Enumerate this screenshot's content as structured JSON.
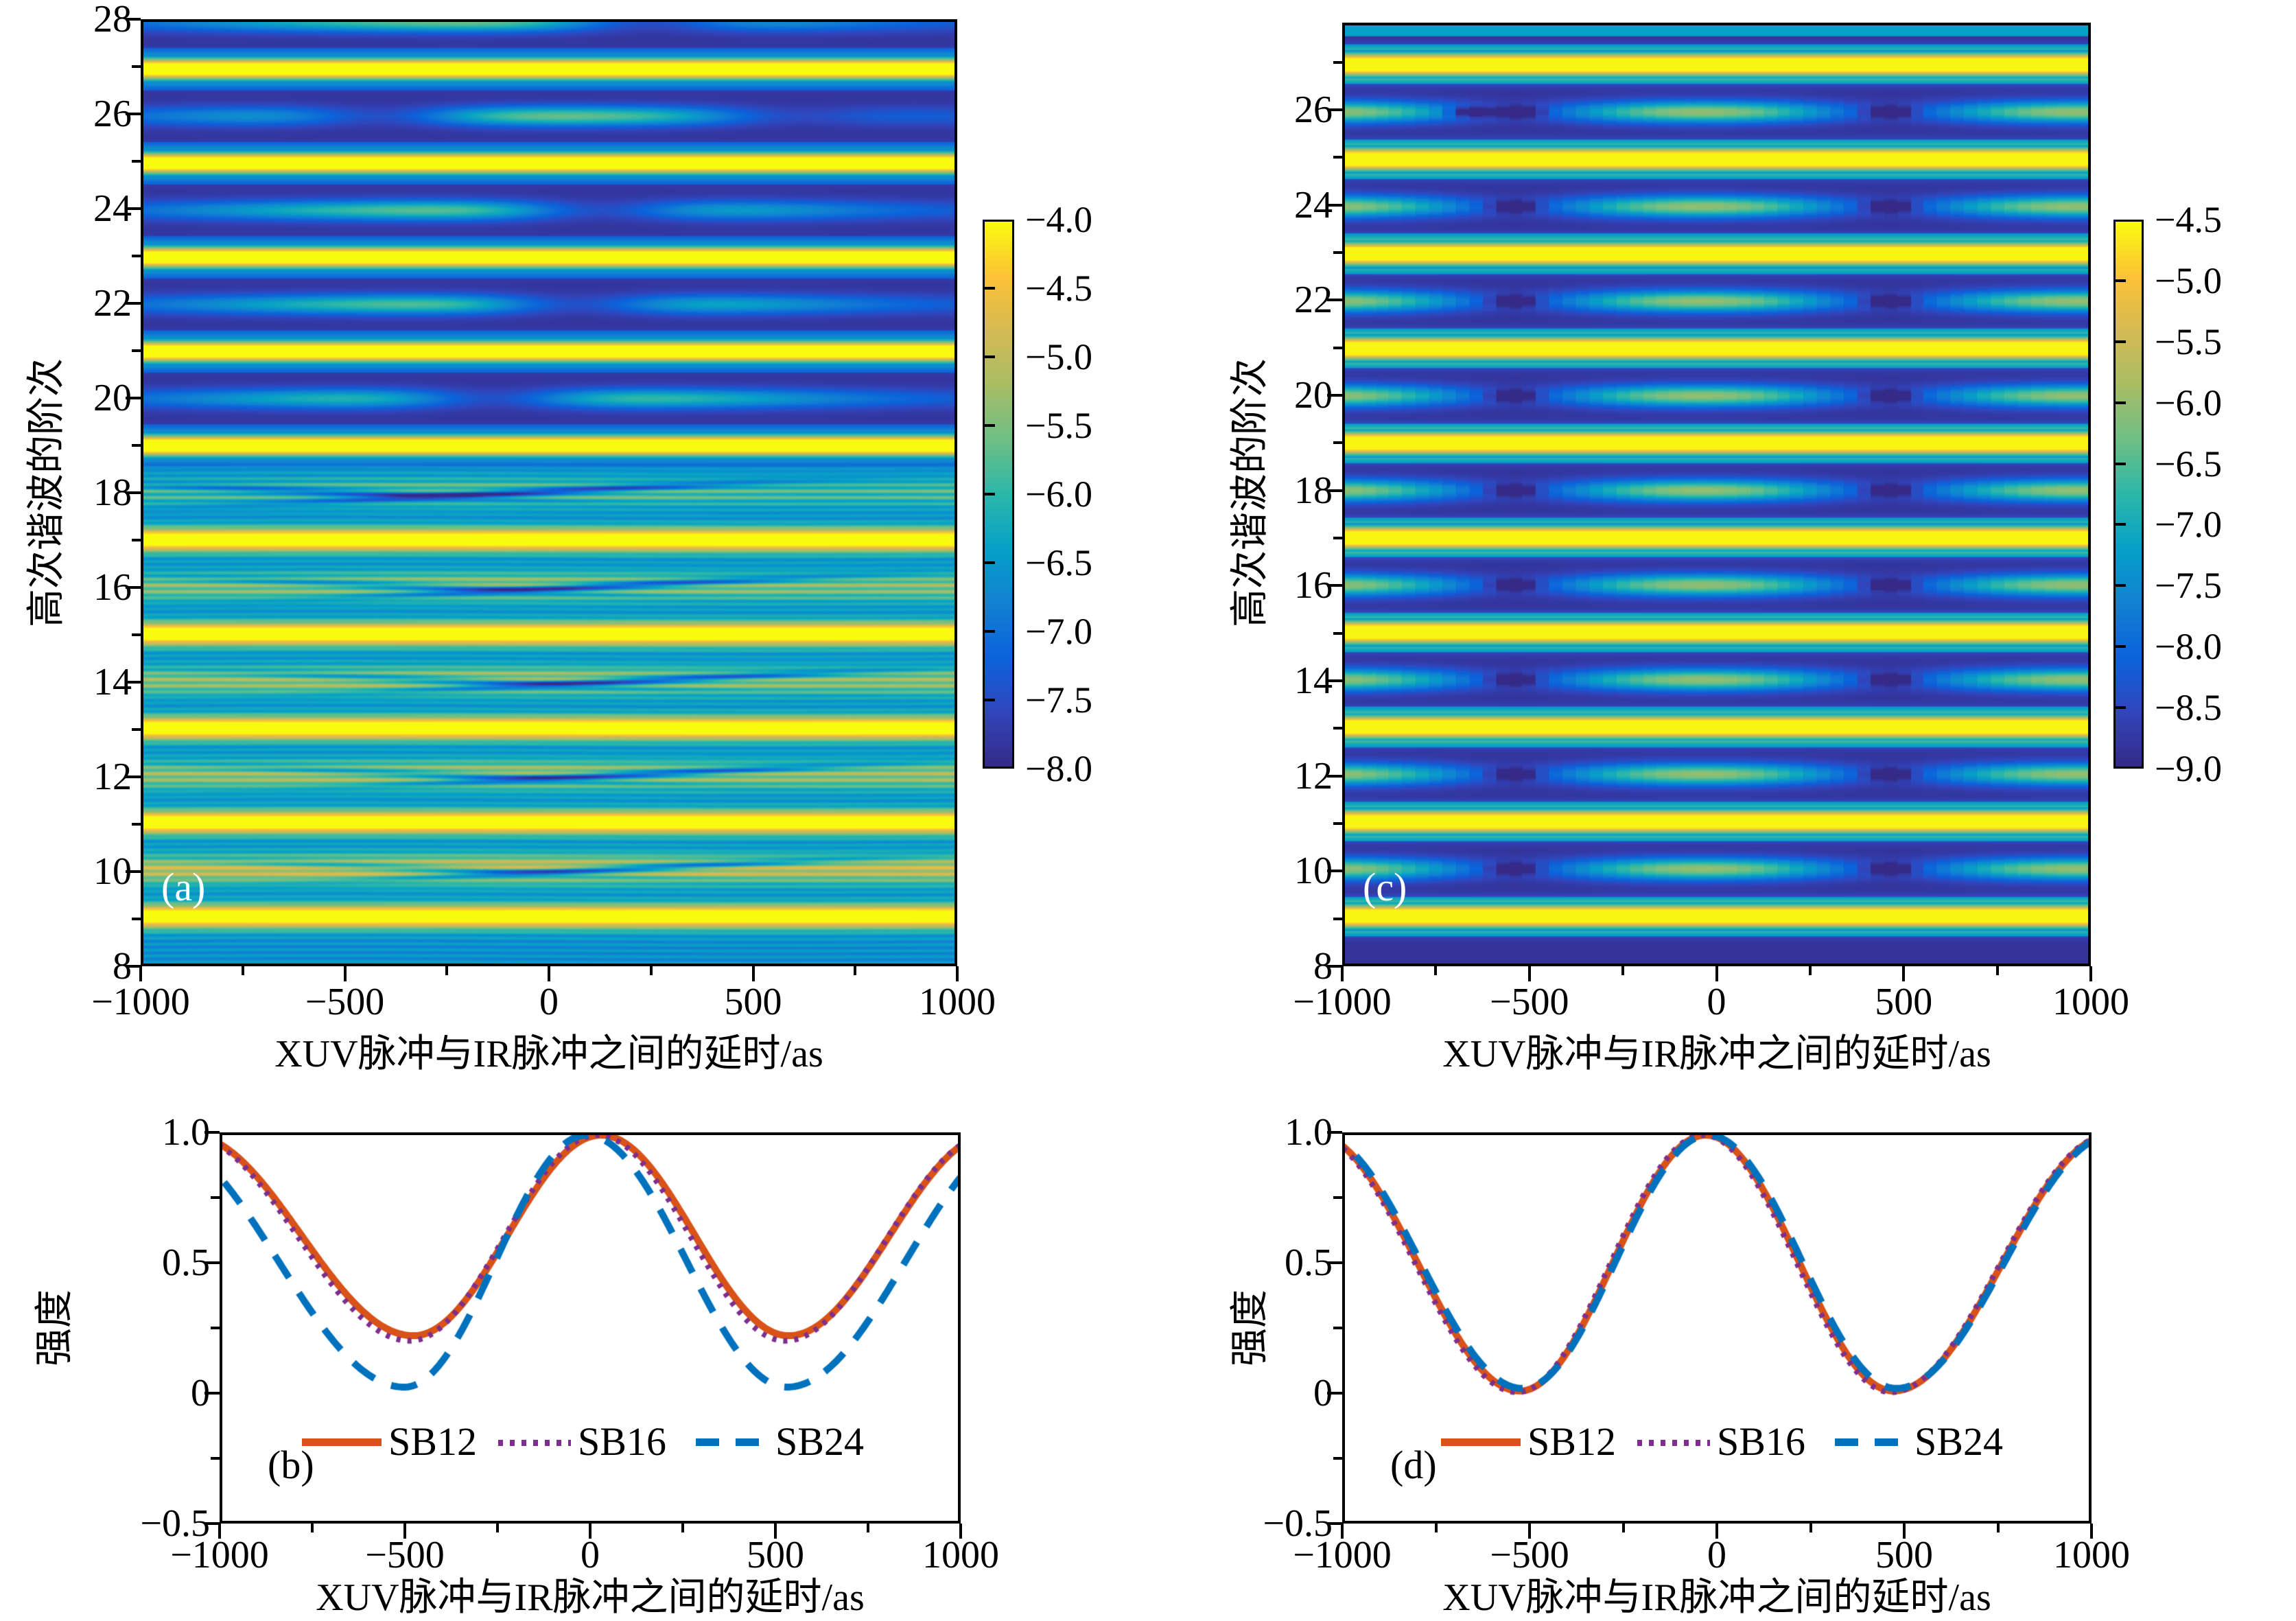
{
  "figure": {
    "background": "#ffffff",
    "description": "Four-panel RABBITT figure: two harmonic-spectrogram heatmaps (a,c) with colorbars and two sideband-intensity oscillation line plots (b,d)"
  },
  "axes": {
    "delay": {
      "label": "XUV脉冲与IR脉冲之间的延时/as",
      "min": -1000,
      "max": 1000,
      "major_ticks": [
        -1000,
        -500,
        0,
        500,
        1000
      ],
      "major_tick_labels": [
        "−1000",
        "−500",
        "0",
        "500",
        "1000"
      ],
      "minor_ticks": [
        -750,
        -250,
        250,
        750
      ]
    },
    "harmonic": {
      "label": "高次谐波的阶次"
    },
    "intensity": {
      "label": "强度",
      "min": -0.5,
      "max": 1.0,
      "major_ticks": [
        1.0,
        0.5,
        0,
        -0.5
      ],
      "major_tick_labels": [
        "1.0",
        "0.5",
        "0",
        "−0.5"
      ],
      "minor_ticks": [
        0.75,
        0.25,
        -0.25
      ]
    }
  },
  "chart_data": [
    {
      "id": "a",
      "type": "heatmap",
      "panel_label": "(a)",
      "x_range": [
        -1000,
        1000
      ],
      "y_range": [
        8,
        28
      ],
      "y_major_ticks": [
        8,
        10,
        12,
        14,
        16,
        18,
        20,
        22,
        24,
        26,
        28
      ],
      "y_major_tick_labels": [
        "8",
        "10",
        "12",
        "14",
        "16",
        "18",
        "20",
        "22",
        "24",
        "26",
        "28"
      ],
      "y_minor_ticks": [
        9,
        11,
        13,
        15,
        17,
        19,
        21,
        23,
        25,
        27
      ],
      "colorbar": {
        "min": -8.0,
        "max": -4.0,
        "tick_labels": [
          "−4.0",
          "−4.5",
          "−5.0",
          "−5.5",
          "−6.0",
          "−6.5",
          "−7.0",
          "−7.5",
          "−8.0"
        ]
      },
      "odd_harmonics": {
        "orders": [
          9,
          11,
          13,
          15,
          17,
          19,
          21,
          23,
          25,
          27
        ],
        "log_intensity": -4.0,
        "gauss_sigma": 0.17
      },
      "background": {
        "upper_log_intensity": -7.85,
        "lower_log_intensity": -6.62,
        "boundary_order": 18.6,
        "lower_stripe_amplitude": 0.26
      },
      "sidebands_upper": [
        {
          "order": 20,
          "pinch_delays": [
            -140
          ]
        },
        {
          "order": 22,
          "pinch_delays": [
            70
          ]
        },
        {
          "order": 24,
          "pinch_delays": [
            130
          ]
        },
        {
          "order": 26,
          "pinch_delays": [
            -420,
            630
          ]
        },
        {
          "order": 28,
          "pinch_delays": [
            250
          ]
        }
      ],
      "sidebands_upper_log_intensity": {
        "min": -7.6,
        "max": -5.55,
        "mod_period": 2600,
        "mod_peak_delay": -100
      },
      "sidebands_lower": [
        {
          "order": 10,
          "peak_log_intensity": -4.72,
          "swoosh_delay": 150
        },
        {
          "order": 12,
          "peak_log_intensity": -5.05,
          "swoosh_delay": 170
        },
        {
          "order": 14,
          "peak_log_intensity": -5.1,
          "swoosh_delay": 200
        },
        {
          "order": 16,
          "peak_log_intensity": -5.2,
          "swoosh_delay": 100
        },
        {
          "order": 18,
          "peak_log_intensity": -5.6,
          "swoosh_delay": -80
        }
      ]
    },
    {
      "id": "c",
      "type": "heatmap",
      "panel_label": "(c)",
      "x_range": [
        -1000,
        1000
      ],
      "y_range": [
        8,
        27.83
      ],
      "y_major_ticks": [
        8,
        10,
        12,
        14,
        16,
        18,
        20,
        22,
        24,
        26
      ],
      "y_major_tick_labels": [
        "8",
        "10",
        "12",
        "14",
        "16",
        "18",
        "20",
        "22",
        "24",
        "26"
      ],
      "y_minor_ticks": [
        9,
        11,
        13,
        15,
        17,
        19,
        21,
        23,
        25,
        27
      ],
      "colorbar": {
        "min": -9.0,
        "max": -4.5,
        "tick_labels": [
          "−4.5",
          "−5.0",
          "−5.5",
          "−6.0",
          "−6.5",
          "−7.0",
          "−7.5",
          "−8.0",
          "−8.5",
          "−9.0"
        ]
      },
      "odd_harmonics": {
        "orders": [
          9,
          11,
          13,
          15,
          17,
          19,
          21,
          23,
          25,
          27
        ],
        "log_intensity": -4.55,
        "gauss_sigma": 0.18
      },
      "background_log_intensity": -8.85,
      "sidebands": {
        "orders": [
          10,
          12,
          14,
          16,
          18,
          20,
          22,
          24,
          26
        ],
        "log_min": -8.45,
        "log_range": 2.45,
        "mod_period": 1010,
        "mod_peak_delay": -40,
        "dark_dot_delays_default": [
          -545,
          465
        ],
        "dark_dot_delays_26": [
          -660,
          -530,
          465
        ],
        "pixel_quantization_as": 36
      }
    },
    {
      "id": "b",
      "type": "line",
      "panel_label": "(b)",
      "xlim": [
        -1000,
        1000
      ],
      "ylim": [
        -0.5,
        1.0
      ],
      "series": [
        {
          "name": "SB12",
          "color": "#d95319",
          "style": "solid",
          "keypoints": [
            [
              -1089,
              1.0
            ],
            [
              -480,
              0.22
            ],
            [
              30,
              1.0
            ],
            [
              540,
              0.22
            ],
            [
              1089,
              1.0
            ]
          ],
          "readings": {
            "value_at_-1000": 0.96,
            "min": 0.22,
            "min_delays": [
              -480,
              540
            ],
            "max": 1.0,
            "max_delay": 30,
            "value_at_1000": 0.95
          }
        },
        {
          "name": "SB16",
          "color": "#7e2f8e",
          "style": "dotted",
          "keypoints": [
            [
              -1095,
              1.0
            ],
            [
              -490,
              0.2
            ],
            [
              20,
              1.0
            ],
            [
              530,
              0.2
            ],
            [
              1085,
              1.0
            ]
          ],
          "readings": {
            "value_at_-1000": 0.94,
            "min": 0.2,
            "min_delays": [
              -490,
              530
            ],
            "max": 1.0,
            "max_delay": 20,
            "value_at_1000": 0.95
          }
        },
        {
          "name": "SB24",
          "color": "#0072bd",
          "style": "dashed",
          "keypoints": [
            [
              -1190,
              1.0
            ],
            [
              -505,
              0.02
            ],
            [
              -10,
              1.0
            ],
            [
              535,
              0.02
            ],
            [
              1180,
              1.0
            ]
          ],
          "readings": {
            "value_at_-1000": 0.83,
            "min": 0.02,
            "min_delays": [
              -505,
              535
            ],
            "max": 1.0,
            "max_delay": -10,
            "value_at_1000": 0.81
          }
        }
      ]
    },
    {
      "id": "d",
      "type": "line",
      "panel_label": "(d)",
      "xlim": [
        -1000,
        1000
      ],
      "ylim": [
        -0.5,
        1.0
      ],
      "series": [
        {
          "name": "SB12",
          "color": "#d95319",
          "style": "solid",
          "keypoints": [
            [
              -1079,
              1.0
            ],
            [
              -530,
              0.005
            ],
            [
              -30,
              1.0
            ],
            [
              475,
              0.005
            ],
            [
              1060,
              1.0
            ]
          ],
          "readings": {
            "value_at_-1000": 0.95,
            "min": 0.0,
            "min_delays": [
              -530,
              475
            ],
            "max": 1.0,
            "max_delay": -30,
            "value_at_1000": 0.97
          }
        },
        {
          "name": "SB16",
          "color": "#7e2f8e",
          "style": "dotted",
          "keypoints": [
            [
              -1085,
              1.0
            ],
            [
              -537,
              0.0
            ],
            [
              -37,
              1.0
            ],
            [
              468,
              0.0
            ],
            [
              1055,
              1.0
            ]
          ],
          "readings": {
            "value_at_-1000": 0.94,
            "min": 0.0,
            "min_delays": [
              -537,
              468
            ],
            "max": 1.0,
            "max_delay": -37,
            "value_at_1000": 0.96
          }
        },
        {
          "name": "SB24",
          "color": "#0072bd",
          "style": "dashed",
          "keypoints": [
            [
              -1072,
              1.0
            ],
            [
              -523,
              0.015
            ],
            [
              -23,
              1.0
            ],
            [
              482,
              0.015
            ],
            [
              1066,
              1.0
            ]
          ],
          "readings": {
            "value_at_-1000": 0.95,
            "min": 0.02,
            "min_delays": [
              -523,
              482
            ],
            "max": 1.0,
            "max_delay": -23,
            "value_at_1000": 0.97
          }
        }
      ]
    }
  ],
  "colors": {
    "sb12": "#d95319",
    "sb16": "#7e2f8e",
    "sb24": "#0072bd",
    "axis": "#000000",
    "panel_letter_light": "#ffffff",
    "parula": [
      "#352a87",
      "#3145bc",
      "#0b63db",
      "#1181d2",
      "#06a0c8",
      "#2cb7a8",
      "#6dbf86",
      "#a8bd64",
      "#d5ba52",
      "#fdc236",
      "#f9fb0e"
    ]
  }
}
